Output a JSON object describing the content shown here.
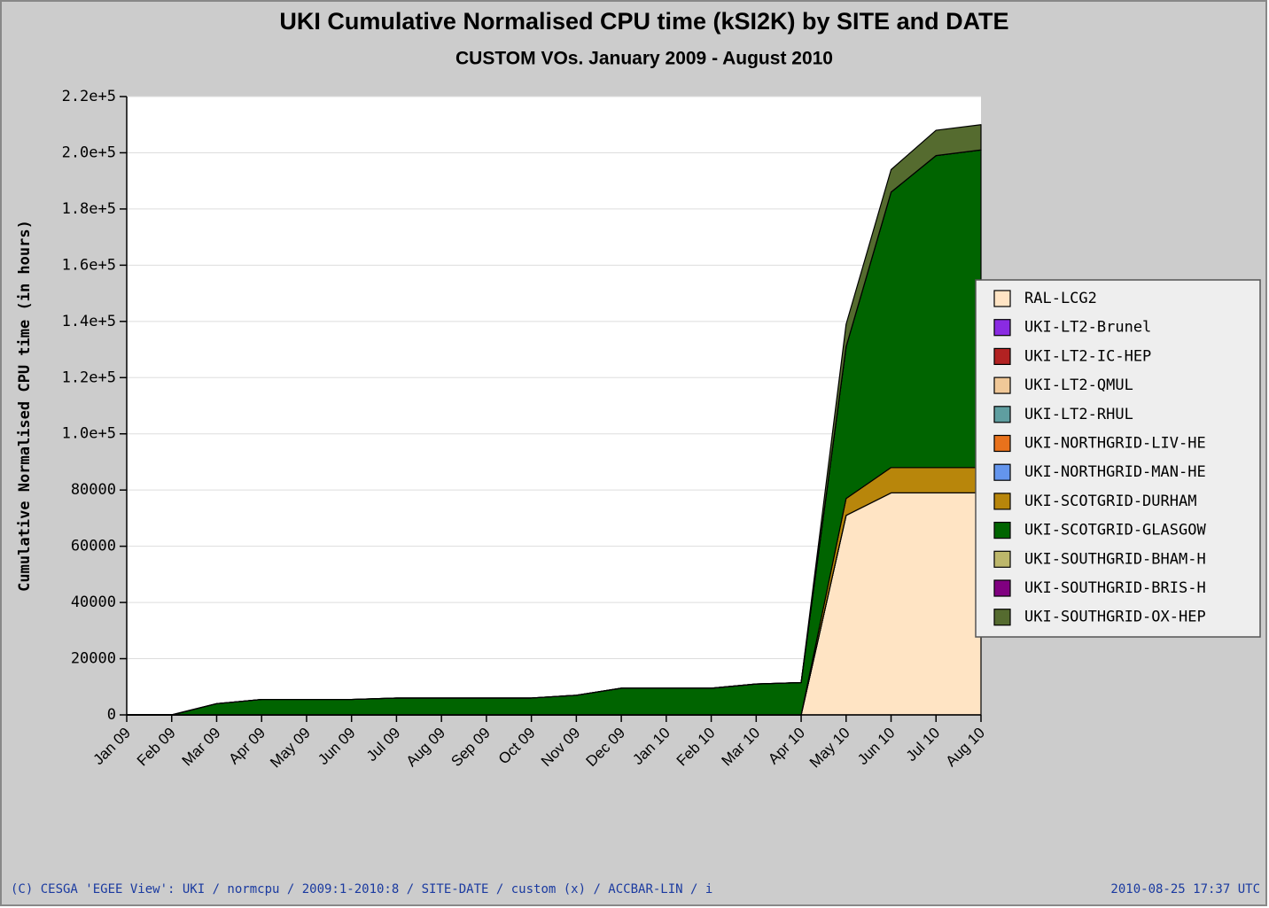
{
  "chart_data": {
    "type": "stacked_area",
    "title": "UKI Cumulative Normalised CPU time (kSI2K) by SITE and DATE",
    "subtitle": "CUSTOM VOs. January 2009 - August 2010",
    "y_label": "Cumulative Normalised CPU time (in hours)",
    "footer_left": "(C) CESGA 'EGEE View': UKI / normcpu / 2009:1-2010:8 / SITE-DATE / custom (x) / ACCBAR-LIN / i",
    "footer_right": "2010-08-25 17:37 UTC",
    "categories": [
      "Jan 09",
      "Feb 09",
      "Mar 09",
      "Apr 09",
      "May 09",
      "Jun 09",
      "Jul 09",
      "Aug 09",
      "Sep 09",
      "Oct 09",
      "Nov 09",
      "Dec 09",
      "Jan 10",
      "Feb 10",
      "Mar 10",
      "Apr 10",
      "May 10",
      "Jun 10",
      "Jul 10",
      "Aug 10"
    ],
    "ylim": [
      0,
      220000
    ],
    "yticks": [
      0,
      20000,
      40000,
      60000,
      80000,
      {
        "value": 100000,
        "label": "1.0e+5"
      },
      {
        "value": 120000,
        "label": "1.2e+5"
      },
      {
        "value": 140000,
        "label": "1.4e+5"
      },
      {
        "value": 160000,
        "label": "1.6e+5"
      },
      {
        "value": 180000,
        "label": "1.8e+5"
      },
      {
        "value": 200000,
        "label": "2.0e+5"
      },
      {
        "value": 220000,
        "label": "2.2e+5"
      }
    ],
    "grid": true,
    "legend": "right",
    "series": [
      {
        "name": "RAL-LCG2",
        "color": "#ffe4c4",
        "values": [
          0,
          0,
          0,
          0,
          0,
          0,
          0,
          0,
          0,
          0,
          0,
          0,
          0,
          0,
          0,
          0,
          71000,
          79000,
          79000,
          79000
        ]
      },
      {
        "name": "UKI-LT2-Brunel",
        "color": "#8a2be2",
        "values": [
          0,
          0,
          0,
          0,
          0,
          0,
          0,
          0,
          0,
          0,
          0,
          0,
          0,
          0,
          0,
          0,
          0,
          0,
          0,
          0
        ]
      },
      {
        "name": "UKI-LT2-IC-HEP",
        "color": "#b22222",
        "values": [
          0,
          0,
          0,
          0,
          0,
          0,
          0,
          0,
          0,
          0,
          0,
          0,
          0,
          0,
          0,
          0,
          0,
          0,
          0,
          0
        ]
      },
      {
        "name": "UKI-LT2-QMUL",
        "color": "#f0c898",
        "values": [
          0,
          0,
          0,
          0,
          0,
          0,
          0,
          0,
          0,
          0,
          0,
          0,
          0,
          0,
          0,
          0,
          0,
          0,
          0,
          0
        ]
      },
      {
        "name": "UKI-LT2-RHUL",
        "color": "#5f9ea0",
        "values": [
          0,
          0,
          0,
          0,
          0,
          0,
          0,
          0,
          0,
          0,
          0,
          0,
          0,
          0,
          0,
          0,
          0,
          0,
          0,
          0
        ]
      },
      {
        "name": "UKI-NORTHGRID-LIV-HE",
        "color": "#e8721c",
        "values": [
          0,
          0,
          0,
          0,
          0,
          0,
          0,
          0,
          0,
          0,
          0,
          0,
          0,
          0,
          0,
          0,
          0,
          0,
          0,
          0
        ]
      },
      {
        "name": "UKI-NORTHGRID-MAN-HE",
        "color": "#6495ed",
        "values": [
          0,
          0,
          0,
          0,
          0,
          0,
          0,
          0,
          0,
          0,
          0,
          0,
          0,
          0,
          0,
          0,
          0,
          0,
          0,
          0
        ]
      },
      {
        "name": "UKI-SCOTGRID-DURHAM",
        "color": "#b8860b",
        "values": [
          0,
          0,
          0,
          0,
          0,
          0,
          0,
          0,
          0,
          0,
          0,
          0,
          0,
          0,
          0,
          0,
          6000,
          9000,
          9000,
          9000
        ]
      },
      {
        "name": "UKI-SCOTGRID-GLASGOW",
        "color": "#006400",
        "values": [
          0,
          0,
          4000,
          5500,
          5500,
          5500,
          6000,
          6000,
          6000,
          6000,
          7000,
          9500,
          9500,
          9500,
          11000,
          11500,
          54000,
          98000,
          111000,
          113000
        ]
      },
      {
        "name": "UKI-SOUTHGRID-BHAM-H",
        "color": "#bdb76b",
        "values": [
          0,
          0,
          0,
          0,
          0,
          0,
          0,
          0,
          0,
          0,
          0,
          0,
          0,
          0,
          0,
          0,
          0,
          0,
          0,
          0
        ]
      },
      {
        "name": "UKI-SOUTHGRID-BRIS-H",
        "color": "#800080",
        "values": [
          0,
          0,
          0,
          0,
          0,
          0,
          0,
          0,
          0,
          0,
          0,
          0,
          0,
          0,
          0,
          0,
          0,
          0,
          0,
          0
        ]
      },
      {
        "name": "UKI-SOUTHGRID-OX-HEP",
        "color": "#556b2f",
        "values": [
          0,
          0,
          0,
          0,
          0,
          0,
          0,
          0,
          0,
          0,
          0,
          0,
          0,
          0,
          0,
          0,
          8000,
          8000,
          9000,
          9000
        ]
      }
    ]
  }
}
